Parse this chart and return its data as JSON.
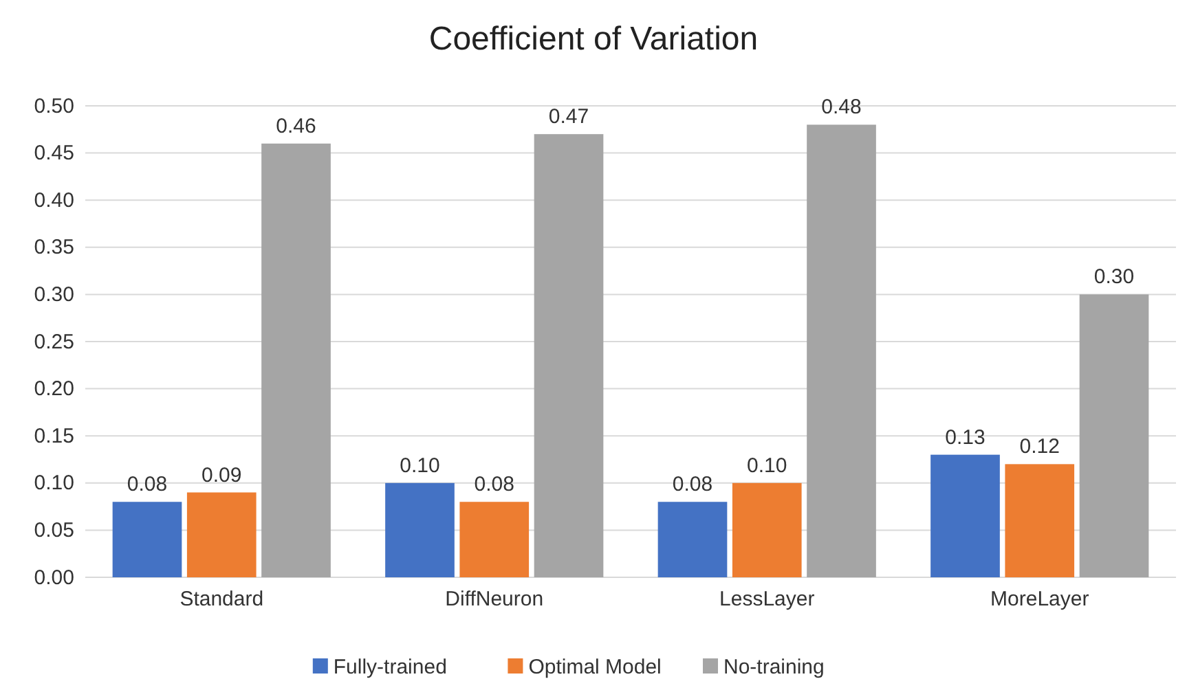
{
  "chart_data": {
    "type": "bar",
    "title": "Coefficient of Variation",
    "categories": [
      "Standard",
      "DiffNeuron",
      "LessLayer",
      "MoreLayer"
    ],
    "series": [
      {
        "name": "Fully-trained",
        "color": "#4472c4",
        "values": [
          0.08,
          0.1,
          0.08,
          0.13
        ],
        "value_labels": [
          "0.08",
          "0.10",
          "0.08",
          "0.13"
        ]
      },
      {
        "name": "Optimal Model",
        "color": "#ed7d31",
        "values": [
          0.09,
          0.08,
          0.1,
          0.12
        ],
        "value_labels": [
          "0.09",
          "0.08",
          "0.10",
          "0.12"
        ]
      },
      {
        "name": "No-training",
        "color": "#a5a5a5",
        "values": [
          0.46,
          0.47,
          0.48,
          0.3
        ],
        "value_labels": [
          "0.46",
          "0.47",
          "0.48",
          "0.30"
        ]
      }
    ],
    "ylim": [
      0,
      0.5
    ],
    "yticks": [
      {
        "value": 0,
        "label": "0.00"
      },
      {
        "value": 0.05,
        "label": "0.05"
      },
      {
        "value": 0.1,
        "label": "0.10"
      },
      {
        "value": 0.15,
        "label": "0.15"
      },
      {
        "value": 0.2,
        "label": "0.20"
      },
      {
        "value": 0.25,
        "label": "0.25"
      },
      {
        "value": 0.3,
        "label": "0.30"
      },
      {
        "value": 0.35,
        "label": "0.35"
      },
      {
        "value": 0.4,
        "label": "0.40"
      },
      {
        "value": 0.45,
        "label": "0.45"
      },
      {
        "value": 0.5,
        "label": "0.50"
      }
    ],
    "grid": "y",
    "legend": "bottom"
  }
}
